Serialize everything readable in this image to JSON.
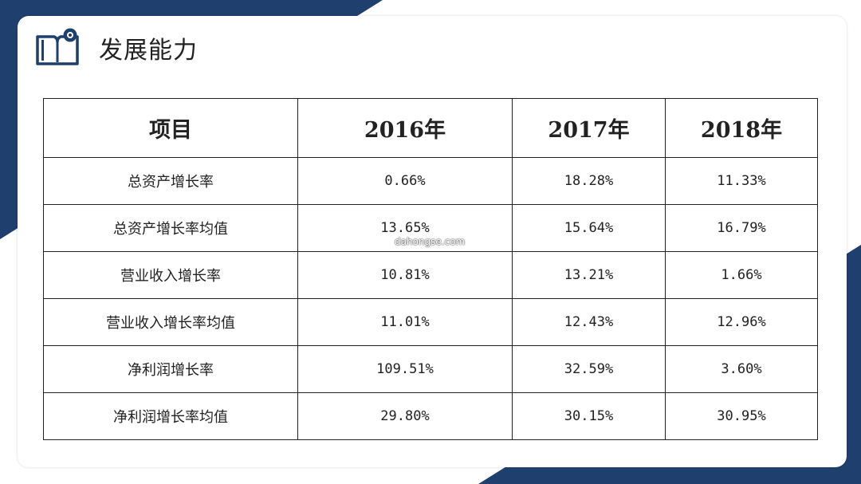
{
  "page": {
    "title": "发展能力",
    "logo_icon": "open-book-icon"
  },
  "table": {
    "headers": [
      "项目",
      "2016年",
      "2017年",
      "2018年"
    ],
    "rows": [
      [
        "总资产增长率",
        "0.66%",
        "18.28%",
        "11.33%"
      ],
      [
        "总资产增长率均值",
        "13.65%",
        "15.64%",
        "16.79%"
      ],
      [
        "营业收入增长率",
        "10.81%",
        "13.21%",
        "1.66%"
      ],
      [
        "营业收入增长率均值",
        "11.01%",
        "12.43%",
        "12.96%"
      ],
      [
        "净利润增长率",
        "109.51%",
        "32.59%",
        "3.60%"
      ],
      [
        "净利润增长率均值",
        "29.80%",
        "30.15%",
        "30.95%"
      ]
    ]
  },
  "watermark": "dahongse.com",
  "colors": {
    "brand_navy": "#1f3f6f",
    "text": "#222222"
  }
}
